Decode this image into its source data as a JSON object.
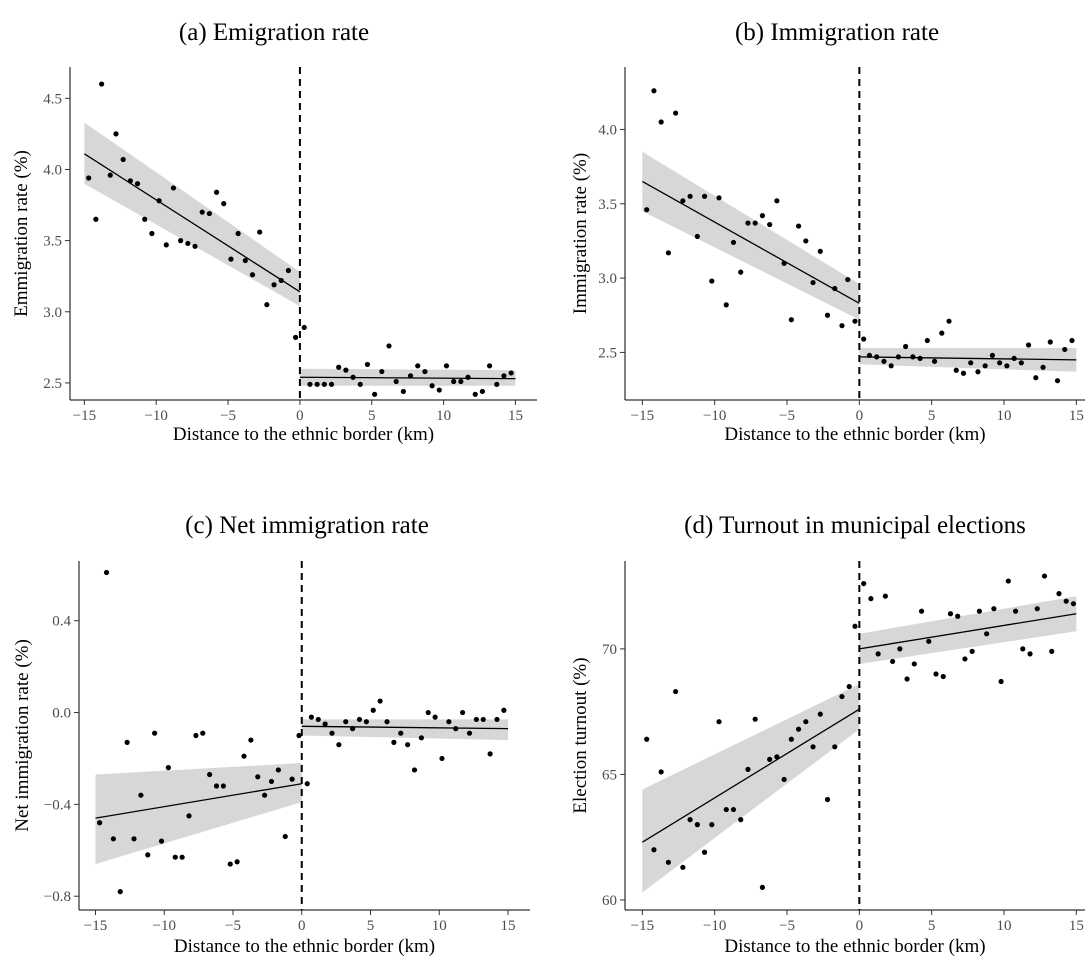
{
  "chart_data": [
    {
      "type": "scatter",
      "panel": "a",
      "title": "(a) Emigration rate",
      "xlabel": "Distance to the ethnic border (km)",
      "ylabel": "Emmigration rate (%)",
      "xlim": [
        -16.0,
        16.5
      ],
      "ylim": [
        2.38,
        4.72
      ],
      "xticks": [
        -15,
        -10,
        -5,
        0,
        5,
        10,
        15
      ],
      "xtick_labels": [
        "−15",
        "−10",
        "−5",
        "0",
        "5",
        "10",
        "15"
      ],
      "yticks": [
        2.5,
        3.0,
        3.5,
        4.0,
        4.5
      ],
      "ytick_labels": [
        "2.5",
        "3.0",
        "3.5",
        "4.0",
        "4.5"
      ],
      "cutoff": 0,
      "points": [
        [
          -14.7,
          3.94
        ],
        [
          -14.2,
          3.65
        ],
        [
          -13.8,
          4.6
        ],
        [
          -13.2,
          3.96
        ],
        [
          -12.8,
          4.25
        ],
        [
          -12.3,
          4.07
        ],
        [
          -11.8,
          3.92
        ],
        [
          -11.3,
          3.9
        ],
        [
          -10.8,
          3.65
        ],
        [
          -10.3,
          3.55
        ],
        [
          -9.8,
          3.78
        ],
        [
          -9.3,
          3.47
        ],
        [
          -8.8,
          3.87
        ],
        [
          -8.3,
          3.5
        ],
        [
          -7.8,
          3.48
        ],
        [
          -7.3,
          3.46
        ],
        [
          -6.8,
          3.7
        ],
        [
          -6.3,
          3.69
        ],
        [
          -5.8,
          3.84
        ],
        [
          -5.3,
          3.76
        ],
        [
          -4.8,
          3.37
        ],
        [
          -4.3,
          3.55
        ],
        [
          -3.8,
          3.36
        ],
        [
          -3.3,
          3.26
        ],
        [
          -2.8,
          3.56
        ],
        [
          -2.3,
          3.05
        ],
        [
          -1.8,
          3.19
        ],
        [
          -1.3,
          3.22
        ],
        [
          -0.8,
          3.29
        ],
        [
          -0.3,
          2.82
        ],
        [
          0.3,
          2.89
        ],
        [
          0.7,
          2.49
        ],
        [
          1.2,
          2.49
        ],
        [
          1.7,
          2.49
        ],
        [
          2.2,
          2.49
        ],
        [
          2.7,
          2.61
        ],
        [
          3.2,
          2.59
        ],
        [
          3.7,
          2.54
        ],
        [
          4.2,
          2.49
        ],
        [
          4.7,
          2.63
        ],
        [
          5.2,
          2.42
        ],
        [
          5.7,
          2.58
        ],
        [
          6.2,
          2.76
        ],
        [
          6.7,
          2.51
        ],
        [
          7.2,
          2.44
        ],
        [
          7.7,
          2.55
        ],
        [
          8.2,
          2.62
        ],
        [
          8.7,
          2.58
        ],
        [
          9.2,
          2.48
        ],
        [
          9.7,
          2.45
        ],
        [
          10.2,
          2.62
        ],
        [
          10.7,
          2.51
        ],
        [
          11.2,
          2.51
        ],
        [
          11.7,
          2.54
        ],
        [
          12.2,
          2.42
        ],
        [
          12.7,
          2.44
        ],
        [
          13.2,
          2.62
        ],
        [
          13.7,
          2.49
        ],
        [
          14.2,
          2.55
        ],
        [
          14.7,
          2.57
        ]
      ],
      "fit_left": {
        "x": [
          -15,
          0
        ],
        "y": [
          4.11,
          3.14
        ],
        "ci_lower": [
          3.9,
          3.04
        ],
        "ci_upper": [
          4.33,
          3.28
        ]
      },
      "fit_right": {
        "x": [
          0,
          15
        ],
        "y": [
          2.54,
          2.53
        ],
        "ci_lower": [
          2.48,
          2.48
        ],
        "ci_upper": [
          2.6,
          2.59
        ]
      }
    },
    {
      "type": "scatter",
      "panel": "b",
      "title": "(b) Immigration rate",
      "xlabel": "Distance to the ethnic border (km)",
      "ylabel": "Immigration rate (%)",
      "xlim": [
        -16.2,
        15.6
      ],
      "ylim": [
        2.18,
        4.42
      ],
      "xticks": [
        -15,
        -10,
        -5,
        0,
        5,
        10,
        15
      ],
      "xtick_labels": [
        "−15",
        "−10",
        "−5",
        "0",
        "5",
        "10",
        "15"
      ],
      "yticks": [
        2.5,
        3.0,
        3.5,
        4.0
      ],
      "ytick_labels": [
        "2.5",
        "3.0",
        "3.5",
        "4.0"
      ],
      "cutoff": 0,
      "points": [
        [
          -14.7,
          3.46
        ],
        [
          -14.2,
          4.26
        ],
        [
          -13.7,
          4.05
        ],
        [
          -13.2,
          3.17
        ],
        [
          -12.7,
          4.11
        ],
        [
          -12.2,
          3.52
        ],
        [
          -11.7,
          3.55
        ],
        [
          -11.2,
          3.28
        ],
        [
          -10.7,
          3.55
        ],
        [
          -10.2,
          2.98
        ],
        [
          -9.7,
          3.54
        ],
        [
          -9.2,
          2.82
        ],
        [
          -8.7,
          3.24
        ],
        [
          -8.2,
          3.04
        ],
        [
          -7.7,
          3.37
        ],
        [
          -7.2,
          3.37
        ],
        [
          -6.7,
          3.42
        ],
        [
          -6.2,
          3.36
        ],
        [
          -5.7,
          3.52
        ],
        [
          -5.2,
          3.1
        ],
        [
          -4.7,
          2.72
        ],
        [
          -4.2,
          3.35
        ],
        [
          -3.7,
          3.25
        ],
        [
          -3.2,
          2.97
        ],
        [
          -2.7,
          3.18
        ],
        [
          -2.2,
          2.75
        ],
        [
          -1.7,
          2.93
        ],
        [
          -1.2,
          2.68
        ],
        [
          -0.8,
          2.99
        ],
        [
          -0.3,
          2.71
        ],
        [
          0.3,
          2.59
        ],
        [
          0.7,
          2.48
        ],
        [
          1.2,
          2.47
        ],
        [
          1.7,
          2.44
        ],
        [
          2.2,
          2.41
        ],
        [
          2.7,
          2.47
        ],
        [
          3.2,
          2.54
        ],
        [
          3.7,
          2.47
        ],
        [
          4.2,
          2.46
        ],
        [
          4.7,
          2.58
        ],
        [
          5.2,
          2.44
        ],
        [
          5.7,
          2.63
        ],
        [
          6.2,
          2.71
        ],
        [
          6.7,
          2.38
        ],
        [
          7.2,
          2.36
        ],
        [
          7.7,
          2.43
        ],
        [
          8.2,
          2.37
        ],
        [
          8.7,
          2.41
        ],
        [
          9.2,
          2.48
        ],
        [
          9.7,
          2.43
        ],
        [
          10.2,
          2.41
        ],
        [
          10.7,
          2.46
        ],
        [
          11.2,
          2.43
        ],
        [
          11.7,
          2.55
        ],
        [
          12.2,
          2.33
        ],
        [
          12.7,
          2.4
        ],
        [
          13.2,
          2.57
        ],
        [
          13.7,
          2.31
        ],
        [
          14.2,
          2.52
        ],
        [
          14.7,
          2.58
        ]
      ],
      "fit_left": {
        "x": [
          -15,
          0
        ],
        "y": [
          3.65,
          2.83
        ],
        "ci_lower": [
          3.45,
          2.72
        ],
        "ci_upper": [
          3.85,
          2.96
        ]
      },
      "fit_right": {
        "x": [
          0,
          15
        ],
        "y": [
          2.47,
          2.45
        ],
        "ci_lower": [
          2.42,
          2.37
        ],
        "ci_upper": [
          2.53,
          2.53
        ]
      }
    },
    {
      "type": "scatter",
      "panel": "c",
      "title": "(c) Net immigration rate",
      "xlabel": "Distance to the ethnic border (km)",
      "ylabel": "Net immigration rate (%)",
      "xlim": [
        -16.2,
        16.6
      ],
      "ylim": [
        -0.86,
        0.66
      ],
      "xticks": [
        -15,
        -10,
        -5,
        0,
        5,
        10,
        15
      ],
      "xtick_labels": [
        "−15",
        "−10",
        "−5",
        "0",
        "5",
        "10",
        "15"
      ],
      "yticks": [
        -0.8,
        -0.4,
        0.0,
        0.4
      ],
      "ytick_labels": [
        "−0.8",
        "−0.4",
        "0.0",
        "0.4"
      ],
      "cutoff": 0,
      "points": [
        [
          -14.7,
          -0.48
        ],
        [
          -14.2,
          0.61
        ],
        [
          -13.7,
          -0.55
        ],
        [
          -13.2,
          -0.78
        ],
        [
          -12.7,
          -0.13
        ],
        [
          -12.2,
          -0.55
        ],
        [
          -11.7,
          -0.36
        ],
        [
          -11.2,
          -0.62
        ],
        [
          -10.7,
          -0.09
        ],
        [
          -10.2,
          -0.56
        ],
        [
          -9.7,
          -0.24
        ],
        [
          -9.2,
          -0.63
        ],
        [
          -8.7,
          -0.63
        ],
        [
          -8.2,
          -0.45
        ],
        [
          -7.7,
          -0.1
        ],
        [
          -7.2,
          -0.09
        ],
        [
          -6.7,
          -0.27
        ],
        [
          -6.2,
          -0.32
        ],
        [
          -5.7,
          -0.32
        ],
        [
          -5.2,
          -0.66
        ],
        [
          -4.7,
          -0.65
        ],
        [
          -4.2,
          -0.19
        ],
        [
          -3.7,
          -0.12
        ],
        [
          -3.2,
          -0.28
        ],
        [
          -2.7,
          -0.36
        ],
        [
          -2.2,
          -0.3
        ],
        [
          -1.7,
          -0.25
        ],
        [
          -1.2,
          -0.54
        ],
        [
          -0.7,
          -0.29
        ],
        [
          -0.2,
          -0.1
        ],
        [
          0.4,
          -0.31
        ],
        [
          0.7,
          -0.02
        ],
        [
          1.2,
          -0.03
        ],
        [
          1.7,
          -0.05
        ],
        [
          2.2,
          -0.09
        ],
        [
          2.7,
          -0.14
        ],
        [
          3.2,
          -0.04
        ],
        [
          3.7,
          -0.07
        ],
        [
          4.2,
          -0.03
        ],
        [
          4.7,
          -0.04
        ],
        [
          5.2,
          0.01
        ],
        [
          5.7,
          0.05
        ],
        [
          6.2,
          -0.04
        ],
        [
          6.7,
          -0.13
        ],
        [
          7.2,
          -0.09
        ],
        [
          7.7,
          -0.14
        ],
        [
          8.2,
          -0.25
        ],
        [
          8.7,
          -0.11
        ],
        [
          9.2,
          0.0
        ],
        [
          9.7,
          -0.02
        ],
        [
          10.2,
          -0.2
        ],
        [
          10.7,
          -0.04
        ],
        [
          11.2,
          -0.07
        ],
        [
          11.7,
          0.0
        ],
        [
          12.2,
          -0.09
        ],
        [
          12.7,
          -0.03
        ],
        [
          13.2,
          -0.03
        ],
        [
          13.7,
          -0.18
        ],
        [
          14.2,
          -0.03
        ],
        [
          14.7,
          0.01
        ]
      ],
      "fit_left": {
        "x": [
          -15,
          0
        ],
        "y": [
          -0.46,
          -0.31
        ],
        "ci_lower": [
          -0.66,
          -0.39
        ],
        "ci_upper": [
          -0.27,
          -0.22
        ]
      },
      "fit_right": {
        "x": [
          0,
          15
        ],
        "y": [
          -0.06,
          -0.07
        ],
        "ci_lower": [
          -0.1,
          -0.12
        ],
        "ci_upper": [
          -0.03,
          -0.03
        ]
      }
    },
    {
      "type": "scatter",
      "panel": "d",
      "title": "(d) Turnout in municipal elections",
      "xlabel": "Distance to the ethnic border (km)",
      "ylabel": "Election turnout (%)",
      "xlim": [
        -16.2,
        15.6
      ],
      "ylim": [
        59.6,
        73.5
      ],
      "xticks": [
        -15,
        -10,
        -5,
        0,
        5,
        10,
        15
      ],
      "xtick_labels": [
        "−15",
        "−10",
        "−5",
        "0",
        "5",
        "10",
        "15"
      ],
      "yticks": [
        60,
        65,
        70
      ],
      "ytick_labels": [
        "60",
        "65",
        "70"
      ],
      "cutoff": 0,
      "points": [
        [
          -14.7,
          66.4
        ],
        [
          -14.2,
          62.0
        ],
        [
          -13.7,
          65.1
        ],
        [
          -13.2,
          61.5
        ],
        [
          -12.7,
          68.3
        ],
        [
          -12.2,
          61.3
        ],
        [
          -11.7,
          63.2
        ],
        [
          -11.2,
          63.0
        ],
        [
          -10.7,
          61.9
        ],
        [
          -10.2,
          63.0
        ],
        [
          -9.7,
          67.1
        ],
        [
          -9.2,
          63.6
        ],
        [
          -8.7,
          63.6
        ],
        [
          -8.2,
          63.2
        ],
        [
          -7.7,
          65.2
        ],
        [
          -7.2,
          67.2
        ],
        [
          -6.7,
          60.5
        ],
        [
          -6.2,
          65.6
        ],
        [
          -5.7,
          65.7
        ],
        [
          -5.2,
          64.8
        ],
        [
          -4.7,
          66.4
        ],
        [
          -4.2,
          66.8
        ],
        [
          -3.7,
          67.1
        ],
        [
          -3.2,
          66.1
        ],
        [
          -2.7,
          67.4
        ],
        [
          -2.2,
          64.0
        ],
        [
          -1.7,
          66.1
        ],
        [
          -1.2,
          68.1
        ],
        [
          -0.7,
          68.5
        ],
        [
          -0.3,
          70.9
        ],
        [
          0.3,
          72.6
        ],
        [
          0.8,
          72.0
        ],
        [
          1.3,
          69.8
        ],
        [
          1.8,
          72.1
        ],
        [
          2.3,
          69.5
        ],
        [
          2.8,
          70.0
        ],
        [
          3.3,
          68.8
        ],
        [
          3.8,
          69.4
        ],
        [
          4.3,
          71.5
        ],
        [
          4.8,
          70.3
        ],
        [
          5.3,
          69.0
        ],
        [
          5.8,
          68.9
        ],
        [
          6.3,
          71.4
        ],
        [
          6.8,
          71.3
        ],
        [
          7.3,
          69.6
        ],
        [
          7.8,
          69.9
        ],
        [
          8.3,
          71.5
        ],
        [
          8.8,
          70.6
        ],
        [
          9.3,
          71.6
        ],
        [
          9.8,
          68.7
        ],
        [
          10.3,
          72.7
        ],
        [
          10.8,
          71.5
        ],
        [
          11.3,
          70.0
        ],
        [
          11.8,
          69.8
        ],
        [
          12.3,
          71.6
        ],
        [
          12.8,
          72.9
        ],
        [
          13.3,
          69.9
        ],
        [
          13.8,
          72.2
        ],
        [
          14.3,
          71.9
        ],
        [
          14.8,
          71.8
        ]
      ],
      "fit_left": {
        "x": [
          -15,
          0
        ],
        "y": [
          62.3,
          67.6
        ],
        "ci_lower": [
          60.3,
          66.8
        ],
        "ci_upper": [
          64.4,
          68.6
        ]
      },
      "fit_right": {
        "x": [
          0,
          15
        ],
        "y": [
          70.0,
          71.4
        ],
        "ci_lower": [
          69.4,
          70.7
        ],
        "ci_upper": [
          70.6,
          72.1
        ]
      }
    }
  ]
}
